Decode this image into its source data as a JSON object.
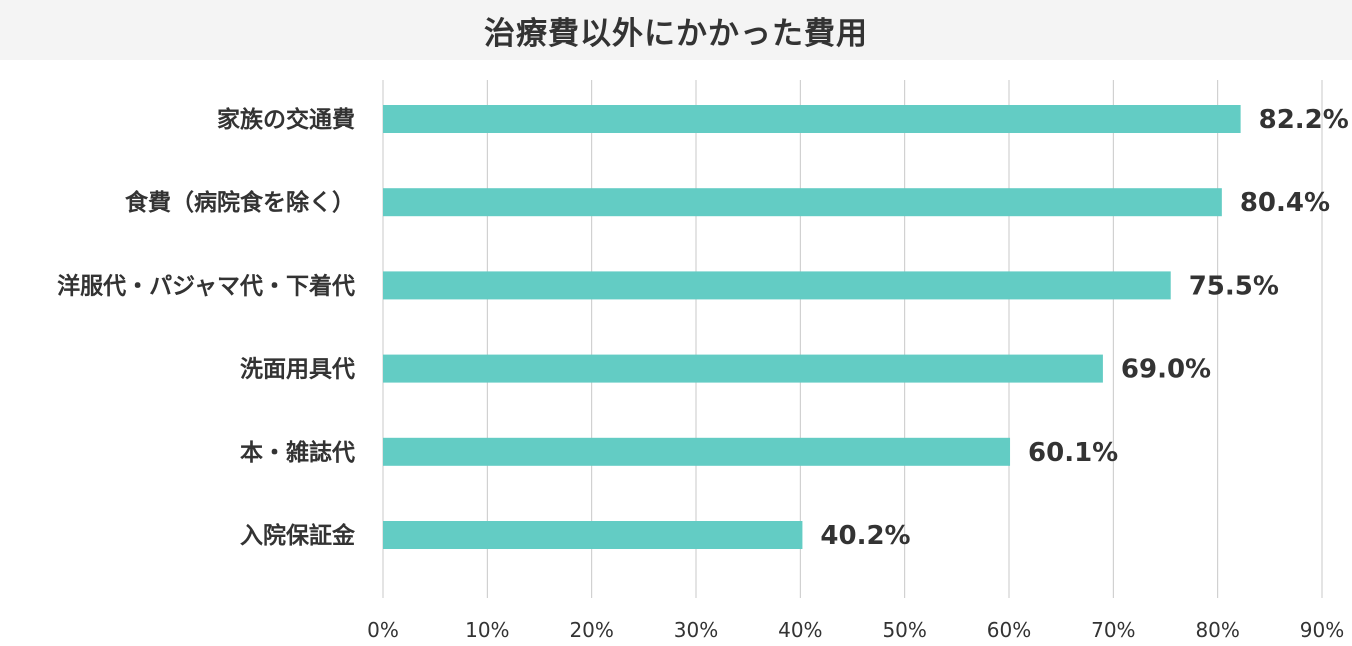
{
  "chart_data": {
    "type": "bar",
    "orientation": "horizontal",
    "title": "治療費以外にかかった費用",
    "categories": [
      "家族の交通費",
      "食費（病院食を除く）",
      "洋服代・パジャマ代・下着代",
      "洗面用具代",
      "本・雑誌代",
      "入院保証金"
    ],
    "values": [
      82.2,
      80.4,
      75.5,
      69.0,
      60.1,
      40.2
    ],
    "value_labels": [
      "82.2%",
      "80.4%",
      "75.5%",
      "69.0%",
      "60.1%",
      "40.2%"
    ],
    "x_ticks": [
      "0%",
      "10%",
      "20%",
      "30%",
      "40%",
      "50%",
      "60%",
      "70%",
      "80%",
      "90%"
    ],
    "xlim": [
      0,
      90
    ],
    "grid": true,
    "bar_color": "#63ccc4",
    "grid_color": "#c8c8c8"
  }
}
